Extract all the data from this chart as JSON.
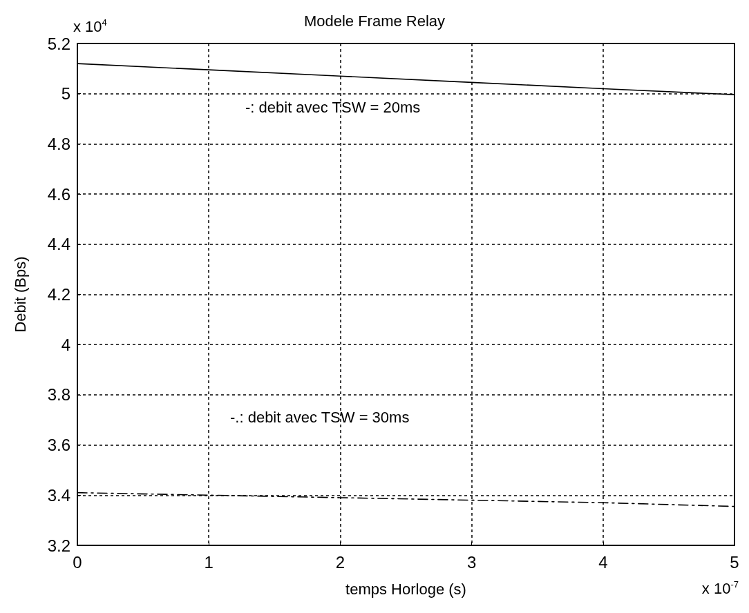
{
  "chart_data": {
    "type": "line",
    "title": "Modele Frame Relay",
    "xlabel": "temps Horloge (s)",
    "ylabel": "Debit (Bps)",
    "x": [
      0,
      1,
      2,
      3,
      4,
      5
    ],
    "series": [
      {
        "color": "#000000",
        "line_style": "solid",
        "values": [
          5.12,
          5.095,
          5.07,
          5.045,
          5.02,
          4.996
        ]
      },
      {
        "color": "#000000",
        "line_style": "dashed",
        "values": [
          3.41,
          3.4,
          3.39,
          3.38,
          3.37,
          3.355
        ]
      }
    ],
    "xlim": [
      0,
      5
    ],
    "ylim": [
      3.2,
      5.2
    ],
    "xticks": [
      0,
      1,
      2,
      3,
      4,
      5
    ],
    "yticks": [
      3.2,
      3.4,
      3.6,
      3.8,
      4,
      4.2,
      4.4,
      4.6,
      4.8,
      5,
      5.2
    ],
    "annotations": [
      "-: debit avec TSW = 20ms",
      "-.: debit avec TSW = 30ms",
      "x 10$^{4}$",
      "x 10$^{-7}$"
    ],
    "grid": true,
    "marker": "none"
  }
}
